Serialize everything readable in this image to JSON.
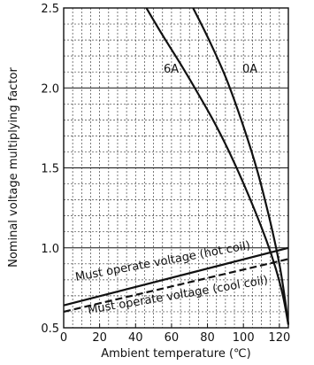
{
  "chart_data": {
    "type": "line",
    "xlabel": "Ambient temperature (℃)",
    "ylabel": "Nominal voltage multiplying factor",
    "xlim": [
      0,
      125
    ],
    "ylim": [
      0.5,
      2.5
    ],
    "x_ticks": [
      0,
      20,
      40,
      60,
      80,
      100,
      120
    ],
    "y_ticks": [
      0.5,
      1.0,
      1.5,
      2.0,
      2.5
    ],
    "grid": "major solid horizontal lines every 0.5, dashed minor grid every 5 (x) and 0.1 (y)",
    "series": [
      {
        "name": "6A",
        "style": "solid",
        "x": [
          46,
          55,
          65,
          75,
          85,
          95,
          105,
          113,
          118,
          122,
          125
        ],
        "y": [
          2.5,
          2.33,
          2.15,
          1.96,
          1.76,
          1.53,
          1.27,
          1.04,
          0.87,
          0.7,
          0.52
        ]
      },
      {
        "name": "0A",
        "style": "solid",
        "x": [
          72,
          80,
          90,
          100,
          108,
          115,
          120,
          123,
          125
        ],
        "y": [
          2.5,
          2.32,
          2.07,
          1.76,
          1.47,
          1.16,
          0.9,
          0.69,
          0.52
        ]
      },
      {
        "name": "Must operate voltage (hot coil)",
        "style": "solid",
        "x": [
          0,
          125
        ],
        "y": [
          0.64,
          1.0
        ]
      },
      {
        "name": "Must operate voltage (cool coil)",
        "style": "dashed",
        "x": [
          0,
          125
        ],
        "y": [
          0.6,
          0.93
        ]
      }
    ]
  },
  "labels": {
    "curve_6a": "6A",
    "curve_0a": "0A",
    "hot_coil": "Must operate voltage (hot coil)",
    "cool_coil": "Must operate voltage (cool coil)"
  }
}
